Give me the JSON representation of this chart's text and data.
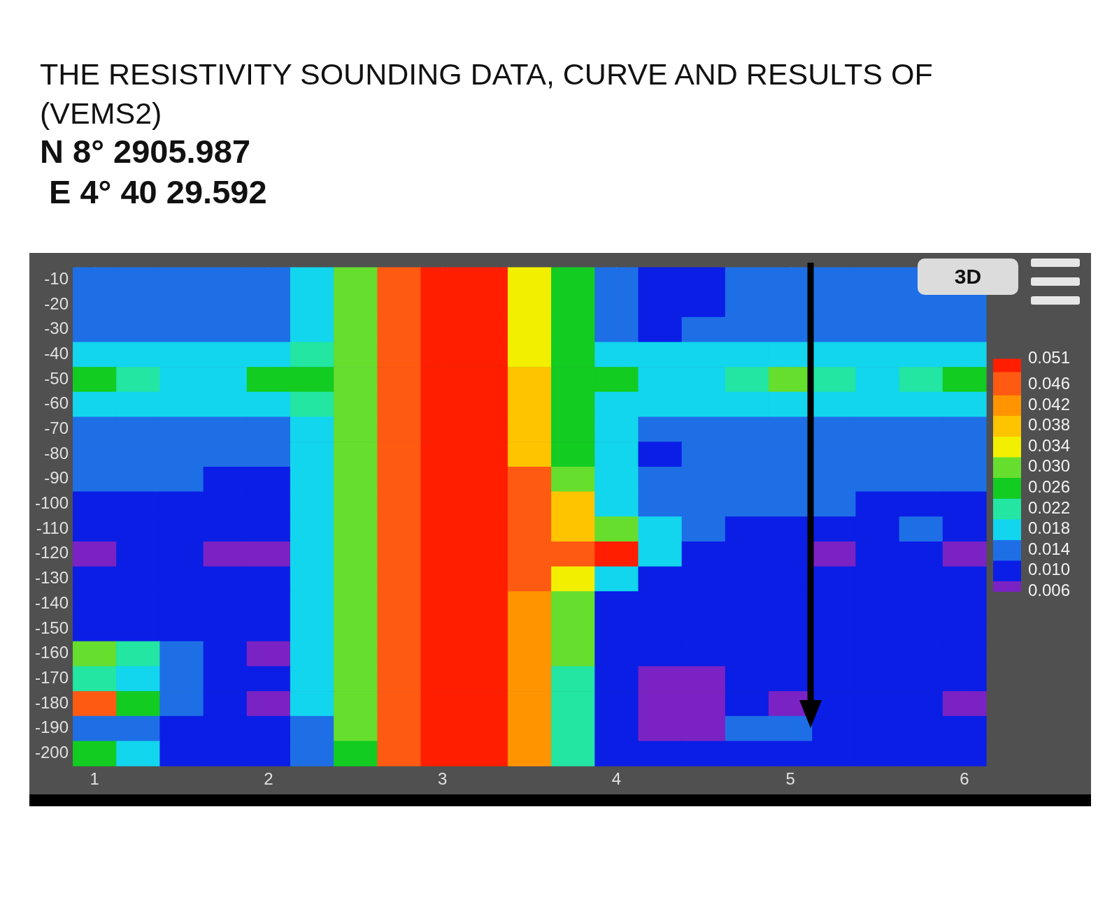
{
  "chart_data": {
    "type": "heatmap",
    "title": "THE RESISTIVITY SOUNDING DATA, CURVE AND RESULTS OF\n (VEMS2)",
    "subtitle": "N 8° 2905.987\n E 4° 40 29.592",
    "categories": [
      "1",
      null,
      null,
      null,
      "2",
      null,
      null,
      null,
      "3",
      null,
      null,
      null,
      "4",
      null,
      null,
      null,
      "5",
      null,
      null,
      null,
      "6"
    ],
    "y_categories": [
      "-10",
      "-20",
      "-30",
      "-40",
      "-50",
      "-60",
      "-70",
      "-80",
      "-90",
      "-100",
      "-110",
      "-120",
      "-130",
      "-140",
      "-150",
      "-160",
      "-170",
      "-180",
      "-190",
      "-200"
    ],
    "cticks": [
      0.006,
      {
        "value": 0.01,
        "label": "0.010"
      },
      0.014,
      0.018,
      0.022,
      0.026,
      {
        "value": 0.03,
        "label": "0.030"
      },
      0.034,
      0.038,
      0.042,
      0.046,
      0.051
    ],
    "colors": [
      "#7b22c4",
      "#0a1ee6",
      "#1e6fe6",
      "#12d6ee",
      "#22e6a2",
      "#12cc22",
      "#66de2e",
      "#f2f000",
      "#ffc400",
      "#ff9400",
      "#ff5a12",
      "#ff1e00"
    ],
    "grid": true,
    "annotations": [
      "3D"
    ],
    "cells": [
      [
        0.014,
        0.014,
        0.014,
        0.014,
        0.014,
        0.018,
        0.03,
        0.046,
        0.051,
        0.051,
        0.034,
        0.026,
        0.014,
        0.01,
        0.01,
        0.014,
        0.014,
        0.014,
        0.014,
        0.014,
        null
      ],
      [
        0.014,
        0.014,
        0.014,
        0.014,
        0.014,
        0.018,
        0.03,
        0.046,
        0.051,
        0.051,
        0.034,
        0.026,
        0.014,
        0.01,
        0.01,
        0.014,
        0.014,
        0.014,
        0.014,
        0.014,
        0.014
      ],
      [
        0.014,
        0.014,
        0.014,
        0.014,
        0.014,
        0.018,
        0.03,
        0.046,
        0.051,
        0.051,
        0.034,
        0.026,
        0.014,
        0.01,
        0.014,
        0.014,
        0.014,
        0.014,
        0.014,
        0.014,
        0.014
      ],
      [
        0.018,
        0.018,
        0.018,
        0.018,
        0.018,
        0.022,
        0.03,
        0.046,
        0.051,
        0.051,
        0.034,
        0.026,
        0.018,
        0.018,
        0.018,
        0.018,
        0.018,
        0.018,
        0.018,
        0.018,
        0.018
      ],
      [
        0.026,
        0.022,
        0.018,
        0.018,
        0.026,
        0.026,
        0.03,
        0.046,
        0.051,
        0.051,
        0.038,
        0.026,
        0.026,
        0.018,
        0.018,
        0.022,
        0.03,
        0.022,
        0.018,
        0.022,
        0.026
      ],
      [
        0.018,
        0.018,
        0.018,
        0.018,
        0.018,
        0.022,
        0.03,
        0.046,
        0.051,
        0.051,
        0.038,
        0.026,
        0.018,
        0.018,
        0.018,
        0.018,
        0.018,
        0.018,
        0.018,
        0.018,
        0.018
      ],
      [
        0.014,
        0.014,
        0.014,
        0.014,
        0.014,
        0.018,
        0.03,
        0.046,
        0.051,
        0.051,
        0.038,
        0.026,
        0.018,
        0.014,
        0.014,
        0.014,
        0.014,
        0.014,
        0.014,
        0.014,
        0.014
      ],
      [
        0.014,
        0.014,
        0.014,
        0.014,
        0.014,
        0.018,
        0.03,
        0.046,
        0.051,
        0.051,
        0.038,
        0.026,
        0.018,
        0.01,
        0.014,
        0.014,
        0.014,
        0.014,
        0.014,
        0.014,
        0.014
      ],
      [
        0.014,
        0.014,
        0.014,
        0.01,
        0.01,
        0.018,
        0.03,
        0.046,
        0.051,
        0.051,
        0.046,
        0.03,
        0.018,
        0.014,
        0.014,
        0.014,
        0.014,
        0.014,
        0.014,
        0.014,
        0.014
      ],
      [
        0.01,
        0.01,
        0.01,
        0.01,
        0.01,
        0.018,
        0.03,
        0.046,
        0.051,
        0.051,
        0.046,
        0.038,
        0.018,
        0.014,
        0.014,
        0.014,
        0.014,
        0.014,
        0.01,
        0.01,
        0.01
      ],
      [
        0.01,
        0.01,
        0.01,
        0.01,
        0.01,
        0.018,
        0.03,
        0.046,
        0.051,
        0.051,
        0.046,
        0.038,
        0.03,
        0.018,
        0.014,
        0.01,
        0.01,
        0.01,
        0.01,
        0.014,
        0.01
      ],
      [
        0.006,
        0.01,
        0.01,
        0.006,
        0.006,
        0.018,
        0.03,
        0.046,
        0.051,
        0.051,
        0.046,
        0.046,
        0.051,
        0.018,
        0.01,
        0.01,
        0.01,
        0.006,
        0.01,
        0.01,
        0.006
      ],
      [
        0.01,
        0.01,
        0.01,
        0.01,
        0.01,
        0.018,
        0.03,
        0.046,
        0.051,
        0.051,
        0.046,
        0.034,
        0.018,
        0.01,
        0.01,
        0.01,
        0.01,
        0.01,
        0.01,
        0.01,
        0.01
      ],
      [
        0.01,
        0.01,
        0.01,
        0.01,
        0.01,
        0.018,
        0.03,
        0.046,
        0.051,
        0.051,
        0.042,
        0.03,
        0.01,
        0.01,
        0.01,
        0.01,
        0.01,
        0.01,
        0.01,
        0.01,
        0.01
      ],
      [
        0.01,
        0.01,
        0.01,
        0.01,
        0.01,
        0.018,
        0.03,
        0.046,
        0.051,
        0.051,
        0.042,
        0.03,
        0.01,
        0.01,
        0.01,
        0.01,
        0.01,
        0.01,
        0.01,
        0.01,
        0.01
      ],
      [
        0.03,
        0.022,
        0.014,
        0.01,
        0.006,
        0.018,
        0.03,
        0.046,
        0.051,
        0.051,
        0.042,
        0.03,
        0.01,
        0.01,
        0.01,
        0.01,
        0.01,
        0.01,
        0.01,
        0.01,
        0.01
      ],
      [
        0.022,
        0.018,
        0.014,
        0.01,
        0.01,
        0.018,
        0.03,
        0.046,
        0.051,
        0.051,
        0.042,
        0.022,
        0.01,
        0.006,
        0.006,
        0.01,
        0.01,
        0.01,
        0.01,
        0.01,
        0.01
      ],
      [
        0.046,
        0.026,
        0.014,
        0.01,
        0.006,
        0.018,
        0.03,
        0.046,
        0.051,
        0.051,
        0.042,
        0.022,
        0.01,
        0.006,
        0.006,
        0.01,
        0.006,
        0.01,
        0.01,
        0.01,
        0.006
      ],
      [
        0.014,
        0.014,
        0.01,
        0.01,
        0.01,
        0.014,
        0.03,
        0.046,
        0.051,
        0.051,
        0.042,
        0.022,
        0.01,
        0.006,
        0.006,
        0.014,
        0.014,
        0.01,
        0.01,
        0.01,
        0.01
      ],
      [
        0.026,
        0.018,
        0.01,
        0.01,
        0.01,
        0.014,
        0.026,
        0.046,
        0.051,
        0.051,
        0.042,
        0.022,
        0.01,
        0.01,
        0.01,
        0.01,
        0.01,
        0.01,
        0.01,
        0.01,
        0.01
      ]
    ]
  }
}
